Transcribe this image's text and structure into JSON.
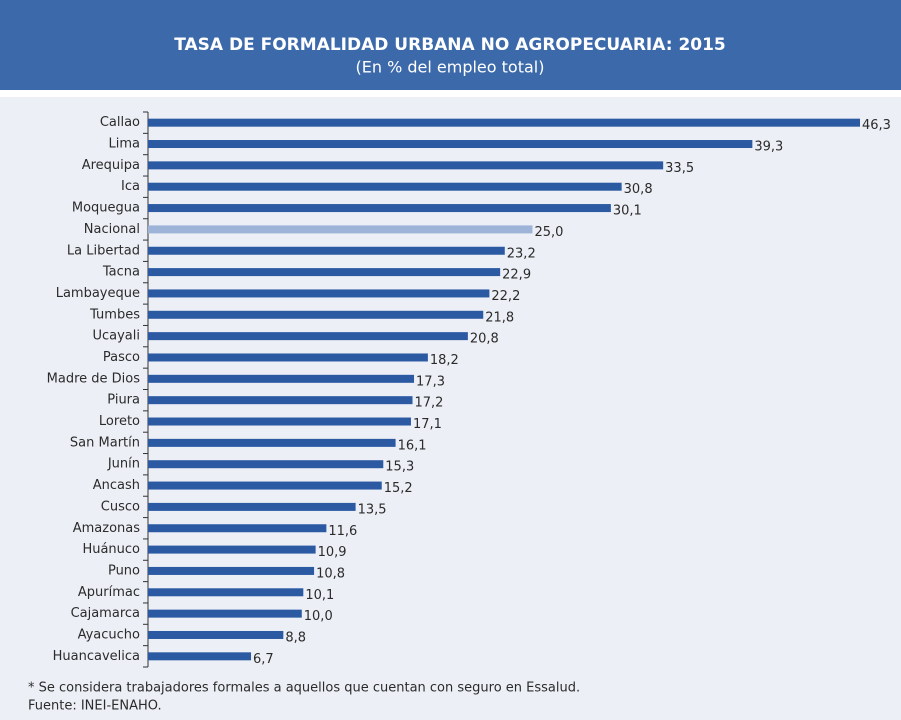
{
  "chart_data": {
    "type": "bar",
    "orientation": "horizontal",
    "title": "TASA DE FORMALIDAD URBANA NO AGROPECUARIA: 2015",
    "subtitle": "(En % del empleo total)",
    "categories": [
      "Callao",
      "Lima",
      "Arequipa",
      "Ica",
      "Moquegua",
      "Nacional",
      "La Libertad",
      "Tacna",
      "Lambayeque",
      "Tumbes",
      "Ucayali",
      "Pasco",
      "Madre de Dios",
      "Piura",
      "Loreto",
      "San Martín",
      "Junín",
      "Ancash",
      "Cusco",
      "Amazonas",
      "Huánuco",
      "Puno",
      "Apurímac",
      "Cajamarca",
      "Ayacucho",
      "Huancavelica"
    ],
    "values": [
      46.3,
      39.3,
      33.5,
      30.8,
      30.1,
      25.0,
      23.2,
      22.9,
      22.2,
      21.8,
      20.8,
      18.2,
      17.3,
      17.2,
      17.1,
      16.1,
      15.3,
      15.2,
      13.5,
      11.6,
      10.9,
      10.8,
      10.1,
      10.0,
      8.8,
      6.7
    ],
    "value_labels": [
      "46,3",
      "39,3",
      "33,5",
      "30,8",
      "30,1",
      "25,0",
      "23,2",
      "22,9",
      "22,2",
      "21,8",
      "20,8",
      "18,2",
      "17,3",
      "17,2",
      "17,1",
      "16,1",
      "15,3",
      "15,2",
      "13,5",
      "11,6",
      "10,9",
      "10,8",
      "10,1",
      "10,0",
      "8,8",
      "6,7"
    ],
    "colors": [
      "#2b5aa3",
      "#2b5aa3",
      "#2b5aa3",
      "#2b5aa3",
      "#2b5aa3",
      "#9db4d8",
      "#2b5aa3",
      "#2b5aa3",
      "#2b5aa3",
      "#2b5aa3",
      "#2b5aa3",
      "#2b5aa3",
      "#2b5aa3",
      "#2b5aa3",
      "#2b5aa3",
      "#2b5aa3",
      "#2b5aa3",
      "#2b5aa3",
      "#2b5aa3",
      "#2b5aa3",
      "#2b5aa3",
      "#2b5aa3",
      "#2b5aa3",
      "#2b5aa3",
      "#2b5aa3",
      "#2b5aa3"
    ],
    "notes": [
      "* Se considera trabajadores formales a aquellos que cuentan con seguro en Essalud.",
      "Fuente: INEI-ENAHO."
    ]
  }
}
